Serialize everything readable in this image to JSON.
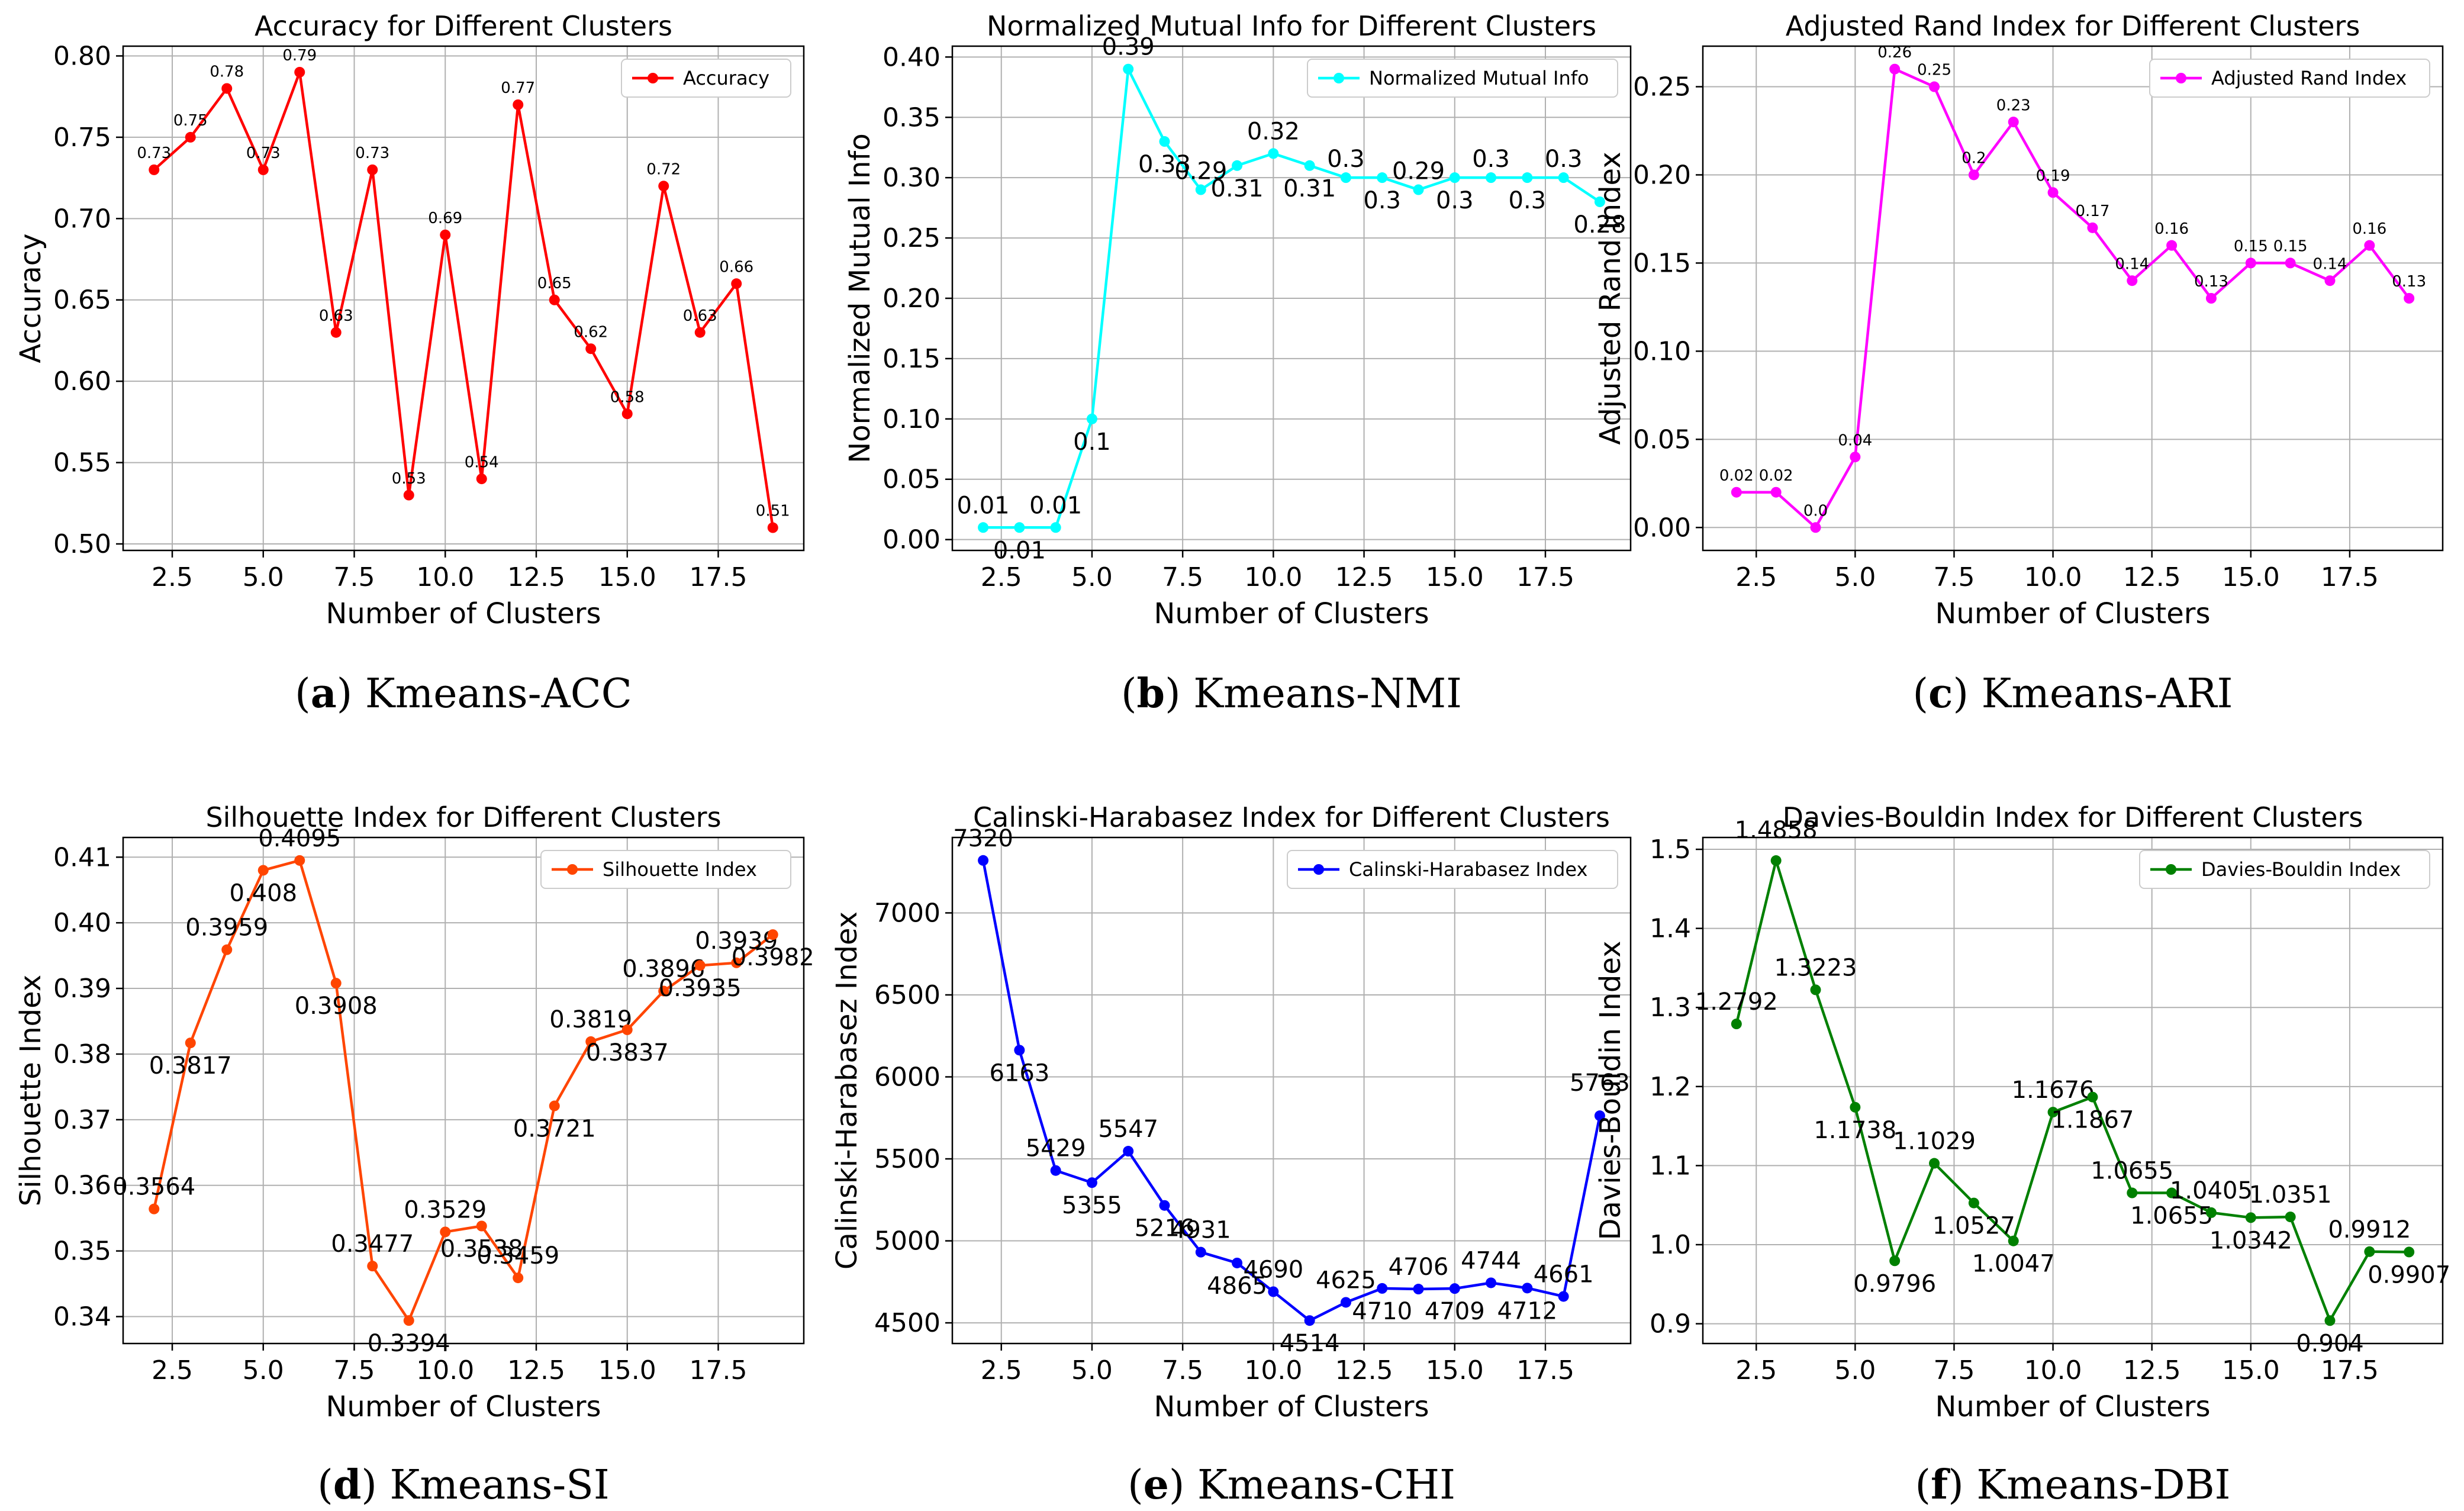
{
  "chart_data": [
    {
      "id": "a",
      "type": "line",
      "title": "Accuracy for Different Clusters",
      "xlabel": "Number of Clusters",
      "ylabel": "Accuracy",
      "color": "#ff0000",
      "legend": "Accuracy",
      "legend_position": "top-right",
      "grid": true,
      "caption_letter": "(a)",
      "caption_text": " Kmeans-ACC",
      "x": [
        2,
        3,
        4,
        5,
        6,
        7,
        8,
        9,
        10,
        11,
        12,
        13,
        14,
        15,
        16,
        17,
        18,
        19
      ],
      "values": [
        0.73,
        0.75,
        0.78,
        0.73,
        0.79,
        0.63,
        0.73,
        0.53,
        0.69,
        0.54,
        0.77,
        0.65,
        0.62,
        0.58,
        0.72,
        0.63,
        0.66,
        0.51
      ],
      "labels": [
        "0.73",
        "0.75",
        "0.78",
        "0.73",
        "0.79",
        "0.63",
        "0.73",
        "0.53",
        "0.69",
        "0.54",
        "0.77",
        "0.65",
        "0.62",
        "0.58",
        "0.72",
        "0.63",
        "0.66",
        "0.51"
      ],
      "label_size": "small",
      "xlim": [
        1.15,
        19.85
      ],
      "ylim": [
        0.496,
        0.806
      ],
      "xticks": [
        "2.5",
        "5.0",
        "7.5",
        "10.0",
        "12.5",
        "15.0",
        "17.5"
      ],
      "xtick_values": [
        2.5,
        5,
        7.5,
        10,
        12.5,
        15,
        17.5
      ],
      "yticks": [
        "0.50",
        "0.55",
        "0.60",
        "0.65",
        "0.70",
        "0.75",
        "0.80"
      ],
      "ytick_values": [
        0.5,
        0.55,
        0.6,
        0.65,
        0.7,
        0.75,
        0.8
      ]
    },
    {
      "id": "b",
      "type": "line",
      "title": "Normalized Mutual Info for Different Clusters",
      "xlabel": "Number of Clusters",
      "ylabel": "Normalized Mutual Info",
      "color": "#00ffff",
      "legend": "Normalized Mutual Info",
      "legend_position": "top-right",
      "grid": true,
      "caption_letter": "(b)",
      "caption_text": " Kmeans-NMI",
      "x": [
        2,
        3,
        4,
        5,
        6,
        7,
        8,
        9,
        10,
        11,
        12,
        13,
        14,
        15,
        16,
        17,
        18,
        19
      ],
      "values": [
        0.01,
        0.01,
        0.01,
        0.1,
        0.39,
        0.33,
        0.29,
        0.31,
        0.32,
        0.31,
        0.3,
        0.3,
        0.29,
        0.3,
        0.3,
        0.3,
        0.3,
        0.28
      ],
      "labels": [
        "0.01",
        "0.01",
        "0.01",
        "0.1",
        "0.39",
        "0.33",
        "0.29",
        "0.31",
        "0.32",
        "0.31",
        "0.3",
        "0.3",
        "0.29",
        "0.3",
        "0.3",
        "0.3",
        "0.3",
        "0.28"
      ],
      "label_size": "large",
      "xlim": [
        1.15,
        19.85
      ],
      "ylim": [
        -0.009,
        0.409
      ],
      "xticks": [
        "2.5",
        "5.0",
        "7.5",
        "10.0",
        "12.5",
        "15.0",
        "17.5"
      ],
      "xtick_values": [
        2.5,
        5,
        7.5,
        10,
        12.5,
        15,
        17.5
      ],
      "yticks": [
        "0.00",
        "0.05",
        "0.10",
        "0.15",
        "0.20",
        "0.25",
        "0.30",
        "0.35",
        "0.40"
      ],
      "ytick_values": [
        0,
        0.05,
        0.1,
        0.15,
        0.2,
        0.25,
        0.3,
        0.35,
        0.4
      ]
    },
    {
      "id": "c",
      "type": "line",
      "title": "Adjusted Rand Index for Different Clusters",
      "xlabel": "Number of Clusters",
      "ylabel": "Adjusted Rand Index",
      "color": "#ff00ff",
      "legend": "Adjusted Rand Index",
      "legend_position": "top-right",
      "grid": true,
      "caption_letter": "(c)",
      "caption_text": " Kmeans-ARI",
      "x": [
        2,
        3,
        4,
        5,
        6,
        7,
        8,
        9,
        10,
        11,
        12,
        13,
        14,
        15,
        16,
        17,
        18,
        19
      ],
      "values": [
        0.02,
        0.02,
        0.0,
        0.04,
        0.26,
        0.25,
        0.2,
        0.23,
        0.19,
        0.17,
        0.14,
        0.16,
        0.13,
        0.15,
        0.15,
        0.14,
        0.16,
        0.13
      ],
      "labels": [
        "0.02",
        "0.02",
        "0.0",
        "0.04",
        "0.26",
        "0.25",
        "0.2",
        "0.23",
        "0.19",
        "0.17",
        "0.14",
        "0.16",
        "0.13",
        "0.15",
        "0.15",
        "0.14",
        "0.16",
        "0.13"
      ],
      "label_size": "small",
      "xlim": [
        1.15,
        19.85
      ],
      "ylim": [
        -0.013,
        0.273
      ],
      "xticks": [
        "2.5",
        "5.0",
        "7.5",
        "10.0",
        "12.5",
        "15.0",
        "17.5"
      ],
      "xtick_values": [
        2.5,
        5,
        7.5,
        10,
        12.5,
        15,
        17.5
      ],
      "yticks": [
        "0.00",
        "0.05",
        "0.10",
        "0.15",
        "0.20",
        "0.25"
      ],
      "ytick_values": [
        0,
        0.05,
        0.1,
        0.15,
        0.2,
        0.25
      ]
    },
    {
      "id": "d",
      "type": "line",
      "title": "Silhouette Index for Different Clusters",
      "xlabel": "Number of Clusters",
      "ylabel": "Silhouette Index",
      "color": "#ff4500",
      "legend": "Silhouette Index",
      "legend_position": "top-right",
      "grid": true,
      "caption_letter": "(d)",
      "caption_text": " Kmeans-SI",
      "x": [
        2,
        3,
        4,
        5,
        6,
        7,
        8,
        9,
        10,
        11,
        12,
        13,
        14,
        15,
        16,
        17,
        18,
        19
      ],
      "values": [
        0.3564,
        0.3817,
        0.3959,
        0.408,
        0.4095,
        0.3908,
        0.3477,
        0.3394,
        0.3529,
        0.3538,
        0.3459,
        0.3721,
        0.3819,
        0.3837,
        0.3896,
        0.3935,
        0.3939,
        0.3982
      ],
      "labels": [
        "0.3564",
        "0.3817",
        "0.3959",
        "0.408",
        "0.4095",
        "0.3908",
        "0.3477",
        "0.3394",
        "0.3529",
        "0.3538",
        "0.3459",
        "0.3721",
        "0.3819",
        "0.3837",
        "0.3896",
        "0.3935",
        "0.3939",
        "0.3982"
      ],
      "label_size": "large",
      "xlim": [
        1.15,
        19.85
      ],
      "ylim": [
        0.3359,
        0.413
      ],
      "xticks": [
        "2.5",
        "5.0",
        "7.5",
        "10.0",
        "12.5",
        "15.0",
        "17.5"
      ],
      "xtick_values": [
        2.5,
        5,
        7.5,
        10,
        12.5,
        15,
        17.5
      ],
      "yticks": [
        "0.34",
        "0.35",
        "0.36",
        "0.37",
        "0.38",
        "0.39",
        "0.40",
        "0.41"
      ],
      "ytick_values": [
        0.34,
        0.35,
        0.36,
        0.37,
        0.38,
        0.39,
        0.4,
        0.41
      ]
    },
    {
      "id": "e",
      "type": "line",
      "title": "Calinski-Harabasez Index for Different Clusters",
      "xlabel": "Number of Clusters",
      "ylabel": "Calinski-Harabasez Index",
      "color": "#0000ff",
      "legend": "Calinski-Harabasez Index",
      "legend_position": "top-right",
      "grid": true,
      "caption_letter": "(e)",
      "caption_text": " Kmeans-CHI",
      "x": [
        2,
        3,
        4,
        5,
        6,
        7,
        8,
        9,
        10,
        11,
        12,
        13,
        14,
        15,
        16,
        17,
        18,
        19
      ],
      "values": [
        7320,
        6163,
        5429,
        5355,
        5547,
        5216,
        4931,
        4865,
        4690,
        4514,
        4625,
        4710,
        4706,
        4709,
        4744,
        4712,
        4661,
        5763
      ],
      "labels": [
        "7320",
        "6163",
        "5429",
        "5355",
        "5547",
        "5216",
        "4931",
        "4865",
        "4690",
        "4514",
        "4625",
        "4710",
        "4706",
        "4709",
        "4744",
        "4712",
        "4661",
        "5763"
      ],
      "label_size": "large",
      "xlim": [
        1.15,
        19.85
      ],
      "ylim": [
        4374,
        7460
      ],
      "xticks": [
        "2.5",
        "5.0",
        "7.5",
        "10.0",
        "12.5",
        "15.0",
        "17.5"
      ],
      "xtick_values": [
        2.5,
        5,
        7.5,
        10,
        12.5,
        15,
        17.5
      ],
      "yticks": [
        "4500",
        "5000",
        "5500",
        "6000",
        "6500",
        "7000"
      ],
      "ytick_values": [
        4500,
        5000,
        5500,
        6000,
        6500,
        7000
      ]
    },
    {
      "id": "f",
      "type": "line",
      "title": "Davies-Bouldin Index for Different Clusters",
      "xlabel": "Number of Clusters",
      "ylabel": "Davies-Bouldin Index",
      "color": "#008000",
      "legend": "Davies-Bouldin Index",
      "legend_position": "top-right",
      "grid": true,
      "caption_letter": "(f)",
      "caption_text": " Kmeans-DBI",
      "x": [
        2,
        3,
        4,
        5,
        6,
        7,
        8,
        9,
        10,
        11,
        12,
        13,
        14,
        15,
        16,
        17,
        18,
        19
      ],
      "values": [
        1.2792,
        1.4858,
        1.3223,
        1.1738,
        0.9796,
        1.1029,
        1.0527,
        1.0047,
        1.1676,
        1.1867,
        1.0655,
        1.0655,
        1.0405,
        1.0342,
        1.0351,
        0.904,
        0.9912,
        0.9907
      ],
      "labels": [
        "1.2792",
        "1.4858",
        "1.3223",
        "1.1738",
        "0.9796",
        "1.1029",
        "1.0527",
        "1.0047",
        "1.1676",
        "1.1867",
        "1.0655",
        "1.0655",
        "1.0405",
        "1.0342",
        "1.0351",
        "0.904",
        "0.9912",
        "0.9907"
      ],
      "label_size": "large",
      "xlim": [
        1.15,
        19.85
      ],
      "ylim": [
        0.875,
        1.515
      ],
      "xticks": [
        "2.5",
        "5.0",
        "7.5",
        "10.0",
        "12.5",
        "15.0",
        "17.5"
      ],
      "xtick_values": [
        2.5,
        5,
        7.5,
        10,
        12.5,
        15,
        17.5
      ],
      "yticks": [
        "0.9",
        "1.0",
        "1.1",
        "1.2",
        "1.3",
        "1.4",
        "1.5"
      ],
      "ytick_values": [
        0.9,
        1.0,
        1.1,
        1.2,
        1.3,
        1.4,
        1.5
      ]
    }
  ]
}
